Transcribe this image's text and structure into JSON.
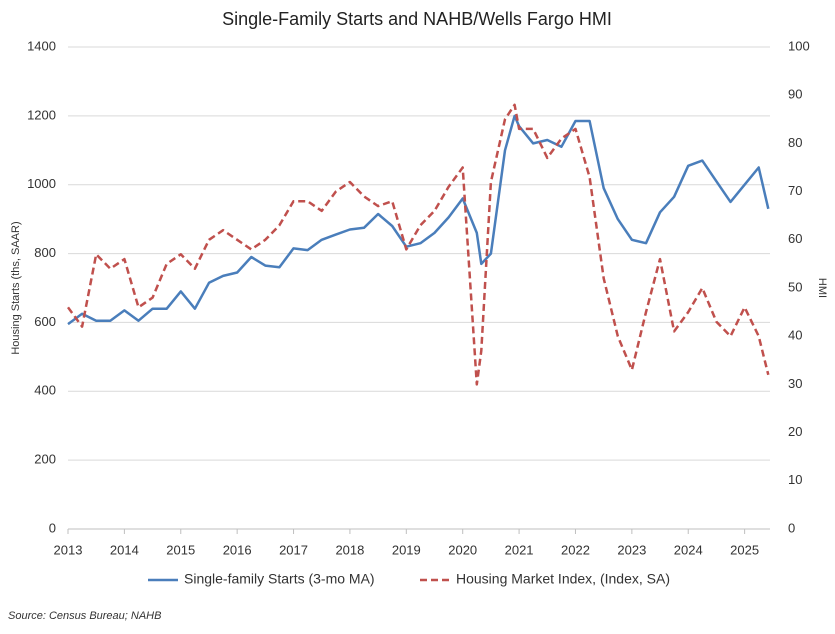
{
  "chart_data": {
    "type": "line",
    "title": "Single-Family Starts and NAHB/Wells Fargo HMI",
    "y_label": "Housing Starts (ths, SAAR)",
    "y2_label": "HMI",
    "source": "Source: Census Bureau; NAHB",
    "x": [
      2013,
      2013.25,
      2013.5,
      2013.75,
      2014,
      2014.25,
      2014.5,
      2014.75,
      2015,
      2015.25,
      2015.5,
      2015.75,
      2016,
      2016.25,
      2016.5,
      2016.75,
      2017,
      2017.25,
      2017.5,
      2017.75,
      2018,
      2018.25,
      2018.5,
      2018.75,
      2019,
      2019.25,
      2019.5,
      2019.75,
      2020,
      2020.25,
      2020.33,
      2020.5,
      2020.75,
      2020.92,
      2021,
      2021.25,
      2021.5,
      2021.75,
      2022,
      2022.25,
      2022.5,
      2022.75,
      2023,
      2023.25,
      2023.5,
      2023.75,
      2024,
      2024.25,
      2024.5,
      2024.75,
      2025,
      2025.25,
      2025.42
    ],
    "series": [
      {
        "name": "Single-family Starts (3-mo MA)",
        "color": "#4a7ebb",
        "dash": false,
        "values": [
          595,
          625,
          605,
          605,
          635,
          605,
          640,
          640,
          690,
          640,
          715,
          735,
          745,
          790,
          765,
          760,
          815,
          810,
          840,
          855,
          870,
          875,
          915,
          880,
          820,
          830,
          860,
          905,
          960,
          860,
          770,
          800,
          1100,
          1200,
          1170,
          1120,
          1130,
          1110,
          1185,
          1185,
          990,
          900,
          840,
          830,
          920,
          965,
          1055,
          1070,
          1010,
          950,
          1000,
          1050,
          930
        ]
      },
      {
        "name": "Housing Market Index, (Index, SA)",
        "color": "#c0504d",
        "dash": true,
        "axis": "y2",
        "values": [
          46,
          42,
          57,
          54,
          56,
          46,
          48,
          55,
          57,
          54,
          60,
          62,
          60,
          58,
          60,
          63,
          68,
          68,
          66,
          70,
          72,
          69,
          67,
          68,
          58,
          63,
          66,
          71,
          75,
          30,
          37,
          72,
          85,
          88,
          83,
          83,
          77,
          81,
          83,
          73,
          52,
          40,
          33,
          45,
          56,
          41,
          45,
          50,
          43,
          40,
          46,
          40,
          32
        ]
      }
    ],
    "xlim": [
      2013,
      2025.45
    ],
    "xticks": [
      2013,
      2014,
      2015,
      2016,
      2017,
      2018,
      2019,
      2020,
      2021,
      2022,
      2023,
      2024,
      2025
    ],
    "ylim": [
      0,
      1400
    ],
    "yticks": [
      0,
      200,
      400,
      600,
      800,
      1000,
      1200,
      1400
    ],
    "y2lim": [
      0,
      100
    ],
    "y2ticks": [
      0,
      10,
      20,
      30,
      40,
      50,
      60,
      70,
      80,
      90,
      100
    ],
    "grid": true
  }
}
